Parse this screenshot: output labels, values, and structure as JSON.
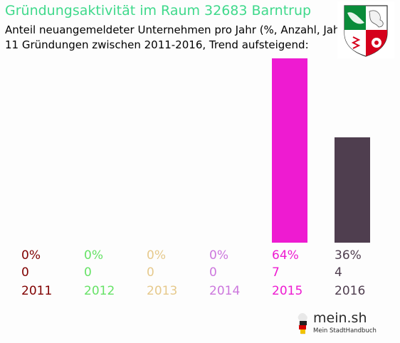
{
  "header": {
    "title": "Gründungsaktivität im Raum 32683 Barntrup",
    "subtitle_line1": "Anteil neuangemeldeter Unternehmen pro Jahr (%, Anzahl, Jahr)",
    "subtitle_line2": "11 Gründungen zwischen 2011-2016, Trend aufsteigend:"
  },
  "branding": {
    "logo_text": "mein.sh",
    "logo_subtext": "Mein StadtHandbuch",
    "coat_of_arms_icon": "nrw-coat-of-arms-icon"
  },
  "chart_data": {
    "type": "bar",
    "categories": [
      "2011",
      "2012",
      "2013",
      "2014",
      "2015",
      "2016"
    ],
    "values": [
      0,
      0,
      0,
      0,
      7,
      4
    ],
    "percent_labels": [
      "0%",
      "0%",
      "0%",
      "0%",
      "64%",
      "36%"
    ],
    "count_labels": [
      "0",
      "0",
      "0",
      "0",
      "7",
      "4"
    ],
    "colors": [
      "#800000",
      "#66e266",
      "#e6c98c",
      "#cc77dd",
      "#ee1bd1",
      "#4f3e4f"
    ],
    "title": "Gründungsaktivität im Raum 32683 Barntrup"
  }
}
